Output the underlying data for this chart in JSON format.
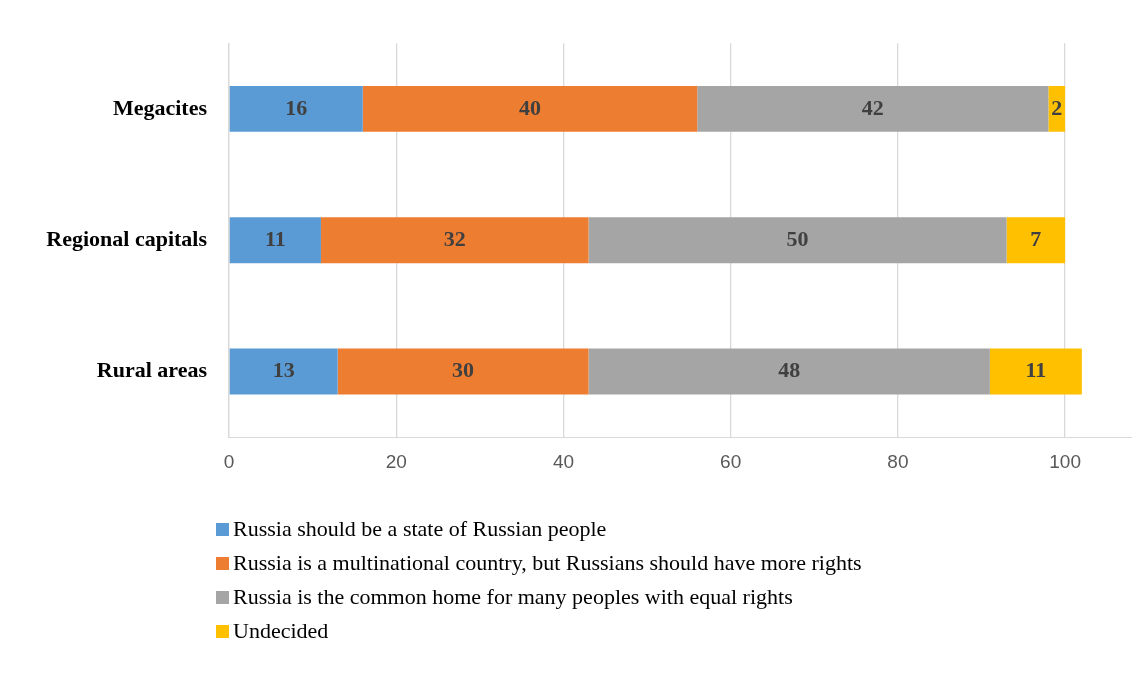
{
  "chart_data": {
    "type": "bar",
    "orientation": "horizontal",
    "stacked": true,
    "categories": [
      "Megacites",
      "Regional capitals",
      "Rural areas"
    ],
    "series": [
      {
        "name": "Russia should be a state of Russian people",
        "color": "#5b9bd5",
        "values": [
          16,
          11,
          13
        ]
      },
      {
        "name": "Russia is a multinational country, but Russians should have more rights",
        "color": "#ed7d31",
        "values": [
          40,
          32,
          30
        ]
      },
      {
        "name": "Russia is the common home for many peoples with equal rights",
        "color": "#a5a5a5",
        "values": [
          42,
          50,
          48
        ]
      },
      {
        "name": "Undecided",
        "color": "#ffc000",
        "values": [
          2,
          7,
          11
        ]
      }
    ],
    "xlim": [
      0,
      108
    ],
    "xticks": [
      0,
      20,
      40,
      60,
      80,
      100
    ],
    "grid": "x",
    "legend": "bottom",
    "data_labels": true
  }
}
